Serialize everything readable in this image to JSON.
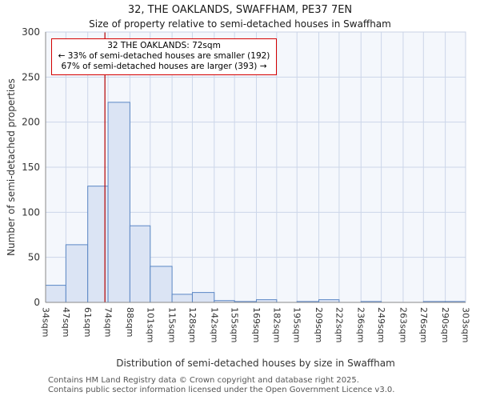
{
  "header": {
    "title": "32, THE OAKLANDS, SWAFFHAM, PE37 7EN",
    "subtitle": "Size of property relative to semi-detached houses in Swaffham"
  },
  "annotation": {
    "line1": "32 THE OAKLANDS: 72sqm",
    "line2": "← 33% of semi-detached houses are smaller (192)",
    "line3": "67% of semi-detached houses are larger (393) →"
  },
  "chart_data": {
    "type": "bar",
    "title": "32, THE OAKLANDS, SWAFFHAM, PE37 7EN",
    "subtitle": "Size of property relative to semi-detached houses in Swaffham",
    "xlabel": "Distribution of semi-detached houses by size in Swaffham",
    "ylabel": "Number of semi-detached properties",
    "bin_edges": [
      34,
      47,
      61,
      74,
      88,
      101,
      115,
      128,
      142,
      155,
      169,
      182,
      195,
      209,
      222,
      236,
      249,
      263,
      276,
      290,
      303
    ],
    "bin_labels": [
      "34sqm",
      "47sqm",
      "61sqm",
      "74sqm",
      "88sqm",
      "101sqm",
      "115sqm",
      "128sqm",
      "142sqm",
      "155sqm",
      "169sqm",
      "182sqm",
      "195sqm",
      "209sqm",
      "222sqm",
      "236sqm",
      "249sqm",
      "263sqm",
      "276sqm",
      "290sqm",
      "303sqm"
    ],
    "values": [
      19,
      64,
      129,
      222,
      85,
      40,
      9,
      11,
      2,
      1,
      3,
      0,
      1,
      3,
      0,
      1,
      0,
      0,
      1,
      1
    ],
    "yticks": [
      0,
      50,
      100,
      150,
      200,
      250,
      300
    ],
    "ylim": [
      0,
      300
    ],
    "grid": true,
    "legend": "none",
    "marker_value": 72,
    "marker_label": "72sqm",
    "smaller_count": 192,
    "smaller_pct": 33,
    "larger_count": 393,
    "larger_pct": 67,
    "colors": {
      "plot_bg": "#f4f7fc",
      "grid": "#ccd6e9",
      "bar_fill": "#dbe4f4",
      "bar_stroke": "#5b87c5",
      "marker": "#b30000",
      "spine": "#888888",
      "spine_light": "#c8d2e4",
      "annotation_border": "#d40000",
      "tick_text": "#333333",
      "footer_text": "#555555"
    }
  },
  "footer": {
    "line1": "Contains HM Land Registry data © Crown copyright and database right 2025.",
    "line2": "Contains public sector information licensed under the Open Government Licence v3.0."
  }
}
